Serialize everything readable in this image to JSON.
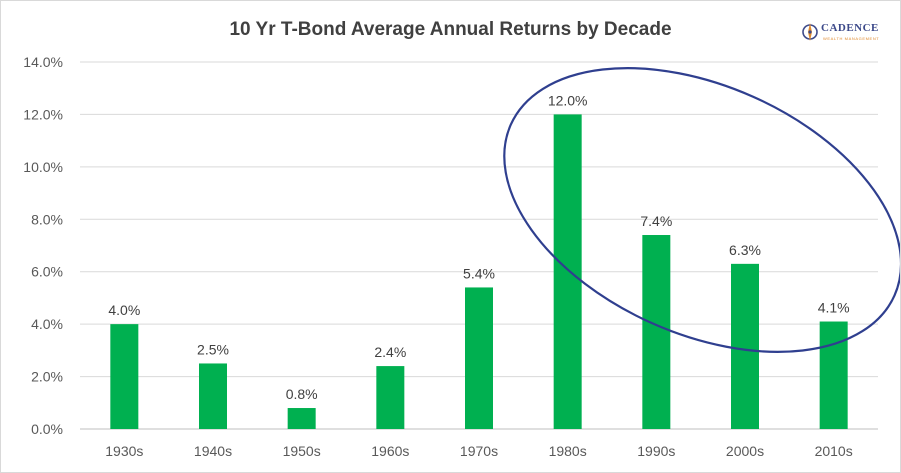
{
  "chart_data": {
    "type": "bar",
    "title": "10 Yr T-Bond Average Annual Returns by Decade",
    "categories": [
      "1930s",
      "1940s",
      "1950s",
      "1960s",
      "1970s",
      "1980s",
      "1990s",
      "2000s",
      "2010s"
    ],
    "values": [
      4.0,
      2.5,
      0.8,
      2.4,
      5.4,
      12.0,
      7.4,
      6.3,
      4.1
    ],
    "data_labels": [
      "4.0%",
      "2.5%",
      "0.8%",
      "2.4%",
      "5.4%",
      "12.0%",
      "7.4%",
      "6.3%",
      "4.1%"
    ],
    "yticks": [
      "0.0%",
      "2.0%",
      "4.0%",
      "6.0%",
      "8.0%",
      "10.0%",
      "12.0%",
      "14.0%"
    ],
    "ylim": [
      0,
      14
    ],
    "grid": true,
    "legend": "none",
    "bar_color": "#00b050",
    "annotation": {
      "shape": "ellipse",
      "color": "#2f3f8f",
      "encloses": [
        "1980s",
        "1990s",
        "2000s",
        "2010s"
      ]
    }
  },
  "logo": {
    "name": "CADENCE",
    "tagline": "WEALTH MANAGEMENT",
    "icon": "compass-logo-icon",
    "colors": {
      "primary": "#3d4a8a",
      "accent": "#e08a2e"
    }
  }
}
